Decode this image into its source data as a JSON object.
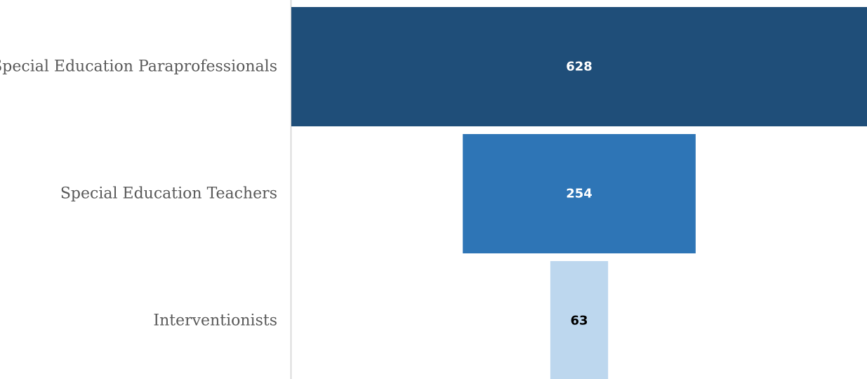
{
  "chart_data": {
    "type": "bar",
    "orientation": "horizontal-funnel",
    "categories": [
      "Special Education Paraprofessionals",
      "Special Education Teachers",
      "Interventionists"
    ],
    "values": [
      628,
      254,
      63
    ],
    "data_labels": [
      "628",
      "254",
      "63"
    ],
    "colors": [
      "#1F4E79",
      "#2E75B6",
      "#BDD7EE"
    ],
    "label_colors": [
      "#FFFFFF",
      "#FFFFFF",
      "#000000"
    ],
    "title": "",
    "xlabel": "",
    "ylabel": "",
    "xlim": [
      0,
      628
    ],
    "grid": false,
    "legend": "none"
  }
}
